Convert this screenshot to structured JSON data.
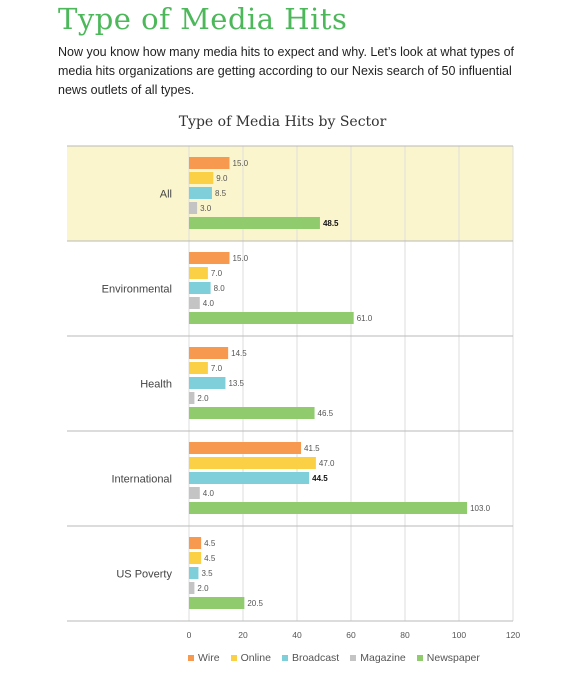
{
  "page": {
    "title": "Type of Media Hits",
    "intro": "Now you know how many media hits to expect and why. Let’s look at what types of media hits organizations are getting according to our Nexis search of 50 influential news outlets of all types."
  },
  "colors": {
    "Wire": "#f79a4f",
    "Online": "#fcd044",
    "Broadcast": "#7fcfdb",
    "Magazine": "#c4c4c4",
    "Newspaper": "#90cc6e",
    "highlight": "#fbf5cd",
    "grid": "#dddddd",
    "title": "#4cb85a"
  },
  "chart_data": {
    "type": "bar",
    "orientation": "horizontal",
    "title": "Type of Media Hits by Sector",
    "categories": [
      "All",
      "Environmental",
      "Health",
      "International",
      "US Poverty"
    ],
    "highlighted_category": "All",
    "series": [
      {
        "name": "Wire",
        "values": [
          15.0,
          15.0,
          14.5,
          41.5,
          4.5
        ],
        "labels": [
          "15.0",
          "15.0",
          "14.5",
          "41.5",
          "4.5"
        ]
      },
      {
        "name": "Online",
        "values": [
          9.0,
          7.0,
          7.0,
          47.0,
          4.5
        ],
        "labels": [
          "9.0",
          "7.0",
          "7.0",
          "47.0",
          "4.5"
        ]
      },
      {
        "name": "Broadcast",
        "values": [
          8.5,
          8.0,
          13.5,
          44.5,
          3.5
        ],
        "labels": [
          "8.5",
          "8.0",
          "13.5",
          "44.5",
          "3.5"
        ]
      },
      {
        "name": "Magazine",
        "values": [
          3.0,
          4.0,
          2.0,
          4.0,
          2.0
        ],
        "labels": [
          "3.0",
          "4.0",
          "2.0",
          "4.0",
          "2.0"
        ]
      },
      {
        "name": "Newspaper",
        "values": [
          48.5,
          61.0,
          46.5,
          103.0,
          20.5
        ],
        "labels": [
          "48.5",
          "61.0",
          "46.5",
          "103.0",
          "20.5"
        ]
      }
    ],
    "xlim": [
      0,
      120
    ],
    "xticks": [
      "0",
      "20",
      "40",
      "60",
      "80",
      "100",
      "120"
    ],
    "xlabel": "",
    "ylabel": "",
    "grid": "vertical",
    "legend": "bottom"
  }
}
